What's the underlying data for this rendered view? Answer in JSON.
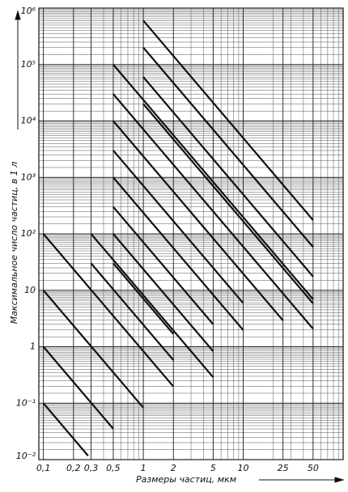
{
  "chart_data": {
    "type": "line",
    "y_label": "Максимальное число частиц, в 1 л",
    "x_label": "Размеры частиц, мкм",
    "log_x": true,
    "log_y": true,
    "grid": true,
    "color": "#111111",
    "xlim": [
      0.09,
      100
    ],
    "ylim": [
      0.01,
      1000000
    ],
    "xticks": [
      {
        "value": 0.1,
        "label": "0,1"
      },
      {
        "value": 0.2,
        "label": "0,2"
      },
      {
        "value": 0.3,
        "label": "0,3"
      },
      {
        "value": 0.5,
        "label": "0,5"
      },
      1,
      2,
      5,
      10,
      25,
      50
    ],
    "yticks": [
      {
        "value": 0.01,
        "label": "10⁻²"
      },
      {
        "value": 0.1,
        "label": "10⁻¹"
      },
      1,
      10,
      {
        "value": 100,
        "label": "10²"
      },
      {
        "value": 1000,
        "label": "10³"
      },
      {
        "value": 10000,
        "label": "10⁴"
      },
      {
        "value": 100000,
        "label": "10⁵"
      },
      {
        "value": 1000000,
        "label": "10⁶"
      }
    ],
    "series": [
      {
        "x": [
          0.1,
          0.28
        ],
        "values": [
          0.1,
          0.0117
        ]
      },
      {
        "x": [
          0.1,
          0.5
        ],
        "values": [
          1,
          0.0352
        ]
      },
      {
        "x": [
          0.1,
          1
        ],
        "values": [
          10,
          0.0832
        ]
      },
      {
        "x": [
          0.1,
          2
        ],
        "values": [
          100,
          0.197
        ]
      },
      {
        "x": [
          0.3,
          5
        ],
        "values": [
          100,
          0.288
        ]
      },
      {
        "x": [
          0.3,
          2
        ],
        "values": [
          30,
          0.579
        ]
      },
      {
        "x": [
          0.5,
          50
        ],
        "values": [
          100000,
          6.92
        ]
      },
      {
        "x": [
          0.5,
          50
        ],
        "values": [
          30000,
          2.08
        ]
      },
      {
        "x": [
          0.5,
          25
        ],
        "values": [
          10000,
          2.92
        ]
      },
      {
        "x": [
          0.5,
          10
        ],
        "values": [
          3000,
          5.91
        ]
      },
      {
        "x": [
          0.5,
          10
        ],
        "values": [
          1000,
          1.97
        ]
      },
      {
        "x": [
          0.5,
          5
        ],
        "values": [
          300,
          2.5
        ]
      },
      {
        "x": [
          0.5,
          5
        ],
        "values": [
          100,
          0.832
        ]
      },
      {
        "x": [
          0.5,
          2
        ],
        "values": [
          30,
          1.68
        ]
      },
      {
        "x": [
          1,
          50
        ],
        "values": [
          600000,
          175
        ]
      },
      {
        "x": [
          1,
          50
        ],
        "values": [
          200000,
          58.5
        ]
      },
      {
        "x": [
          1,
          50
        ],
        "values": [
          60000,
          17.5
        ]
      },
      {
        "x": [
          1,
          50
        ],
        "values": [
          20000,
          5.85
        ]
      }
    ]
  }
}
